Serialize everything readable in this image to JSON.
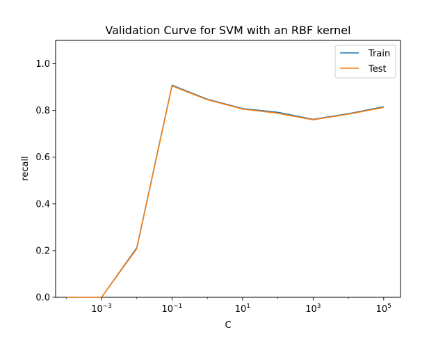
{
  "chart_data": {
    "type": "line",
    "title": "Validation Curve for SVM with an RBF kernel",
    "xlabel": "C",
    "ylabel": "recall",
    "xscale": "log",
    "xlim": [
      5e-05,
      300000
    ],
    "ylim": [
      0.0,
      1.1
    ],
    "x": [
      0.0001,
      0.001,
      0.01,
      0.1,
      1,
      10,
      100,
      1000,
      10000,
      100000
    ],
    "xticks": [
      {
        "value": 0.001,
        "base": "10",
        "exp": "−3"
      },
      {
        "value": 0.1,
        "base": "10",
        "exp": "−1"
      },
      {
        "value": 10,
        "base": "10",
        "exp": "1"
      },
      {
        "value": 1000,
        "base": "10",
        "exp": "3"
      },
      {
        "value": 100000,
        "base": "10",
        "exp": "5"
      }
    ],
    "yticks": [
      {
        "value": 0.0,
        "label": "0.0"
      },
      {
        "value": 0.2,
        "label": "0.2"
      },
      {
        "value": 0.4,
        "label": "0.4"
      },
      {
        "value": 0.6,
        "label": "0.6"
      },
      {
        "value": 0.8,
        "label": "0.8"
      },
      {
        "value": 1.0,
        "label": "1.0"
      }
    ],
    "series": [
      {
        "name": "Train",
        "color": "#1f77b4",
        "values": [
          0.0,
          0.0,
          0.212,
          0.908,
          0.848,
          0.808,
          0.792,
          0.762,
          0.786,
          0.816
        ]
      },
      {
        "name": "Test",
        "color": "#ff7f0e",
        "values": [
          0.0,
          0.0,
          0.208,
          0.905,
          0.846,
          0.806,
          0.788,
          0.76,
          0.784,
          0.813
        ]
      }
    ],
    "legend": "top-right",
    "grid": false
  }
}
